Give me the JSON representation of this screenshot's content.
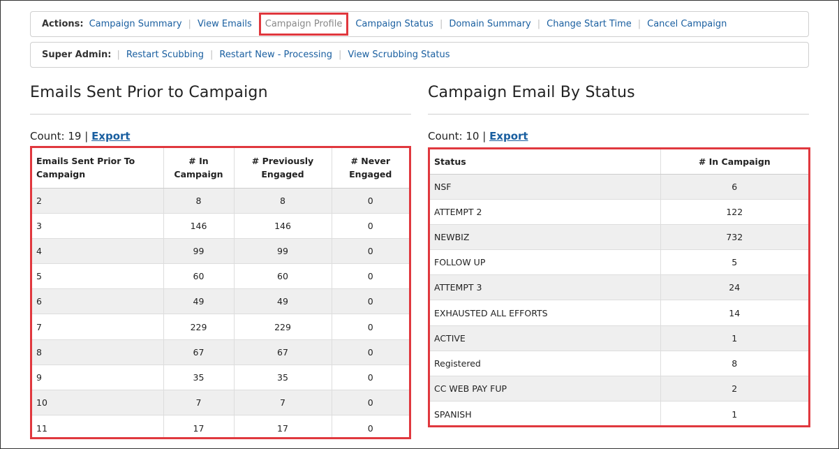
{
  "actions": {
    "label": "Actions:",
    "links": [
      "Campaign Summary",
      "View Emails",
      "Campaign Profile",
      "Campaign Status",
      "Domain Summary",
      "Change Start Time",
      "Cancel Campaign"
    ]
  },
  "super_admin": {
    "label": "Super Admin:",
    "links": [
      "Restart Scubbing",
      "Restart New - Processing",
      "View Scrubbing Status"
    ]
  },
  "left": {
    "title": "Emails Sent Prior to Campaign",
    "count_text": "Count: 19 |",
    "export_label": "Export",
    "headers": [
      "Emails Sent Prior To Campaign",
      "# In Campaign",
      "# Previously Engaged",
      "# Never Engaged"
    ],
    "rows": [
      [
        "2",
        "8",
        "8",
        "0"
      ],
      [
        "3",
        "146",
        "146",
        "0"
      ],
      [
        "4",
        "99",
        "99",
        "0"
      ],
      [
        "5",
        "60",
        "60",
        "0"
      ],
      [
        "6",
        "49",
        "49",
        "0"
      ],
      [
        "7",
        "229",
        "229",
        "0"
      ],
      [
        "8",
        "67",
        "67",
        "0"
      ],
      [
        "9",
        "35",
        "35",
        "0"
      ],
      [
        "10",
        "7",
        "7",
        "0"
      ],
      [
        "11",
        "17",
        "17",
        "0"
      ]
    ]
  },
  "right": {
    "title": "Campaign Email By Status",
    "count_text": "Count: 10 |",
    "export_label": "Export",
    "headers": [
      "Status",
      "# In Campaign"
    ],
    "rows": [
      [
        "NSF",
        "6"
      ],
      [
        "ATTEMPT 2",
        "122"
      ],
      [
        "NEWBIZ",
        "732"
      ],
      [
        "FOLLOW UP",
        "5"
      ],
      [
        "ATTEMPT 3",
        "24"
      ],
      [
        "EXHAUSTED ALL EFFORTS",
        "14"
      ],
      [
        "ACTIVE",
        "1"
      ],
      [
        "Registered",
        "8"
      ],
      [
        "CC WEB PAY FUP",
        "2"
      ],
      [
        "SPANISH",
        "1"
      ]
    ]
  }
}
